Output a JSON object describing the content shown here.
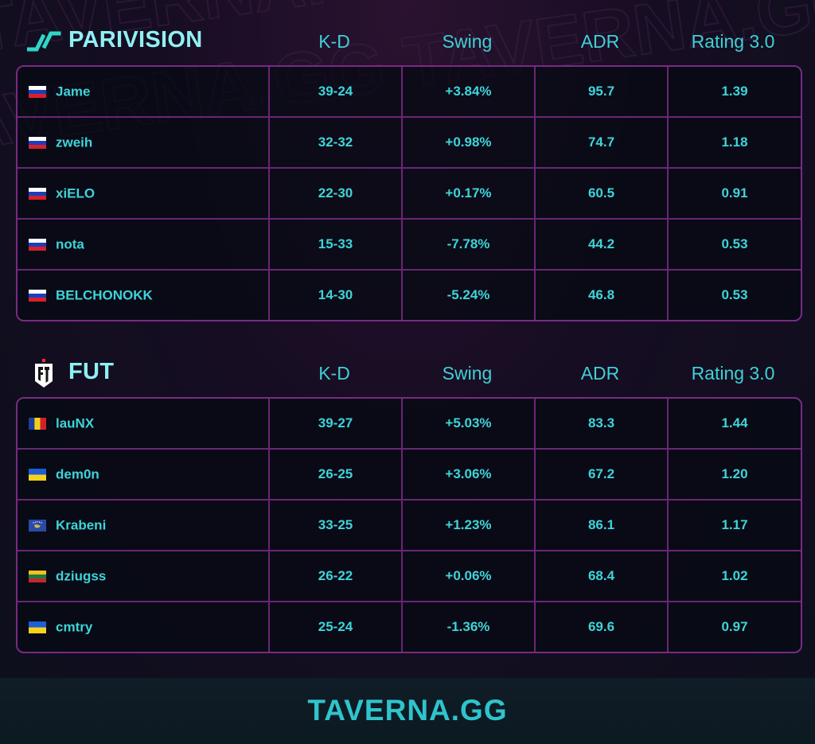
{
  "columns": {
    "kd": "K-D",
    "swing": "Swing",
    "adr": "ADR",
    "rating": "Rating 3.0"
  },
  "teams": [
    {
      "name": "PARIVISION",
      "logo_icon": "parivision-logo-icon",
      "players": [
        {
          "name": "Jame",
          "flag": "russia-flag-icon",
          "kd": "39-24",
          "swing": "+3.84%",
          "adr": "95.7",
          "rating": "1.39"
        },
        {
          "name": "zweih",
          "flag": "russia-flag-icon",
          "kd": "32-32",
          "swing": "+0.98%",
          "adr": "74.7",
          "rating": "1.18"
        },
        {
          "name": "xiELO",
          "flag": "russia-flag-icon",
          "kd": "22-30",
          "swing": "+0.17%",
          "adr": "60.5",
          "rating": "0.91"
        },
        {
          "name": "nota",
          "flag": "russia-flag-icon",
          "kd": "15-33",
          "swing": "-7.78%",
          "adr": "44.2",
          "rating": "0.53"
        },
        {
          "name": "BELCHONOKK",
          "flag": "russia-flag-icon",
          "kd": "14-30",
          "swing": "-5.24%",
          "adr": "46.8",
          "rating": "0.53"
        }
      ]
    },
    {
      "name": "FUT",
      "logo_icon": "fut-logo-icon",
      "players": [
        {
          "name": "lauNX",
          "flag": "romania-flag-icon",
          "kd": "39-27",
          "swing": "+5.03%",
          "adr": "83.3",
          "rating": "1.44"
        },
        {
          "name": "dem0n",
          "flag": "ukraine-flag-icon",
          "kd": "26-25",
          "swing": "+3.06%",
          "adr": "67.2",
          "rating": "1.20"
        },
        {
          "name": "Krabeni",
          "flag": "kosovo-flag-icon",
          "kd": "33-25",
          "swing": "+1.23%",
          "adr": "86.1",
          "rating": "1.17"
        },
        {
          "name": "dziugss",
          "flag": "lithuania-flag-icon",
          "kd": "26-22",
          "swing": "+0.06%",
          "adr": "68.4",
          "rating": "1.02"
        },
        {
          "name": "cmtry",
          "flag": "ukraine-flag-icon",
          "kd": "25-24",
          "swing": "-1.36%",
          "adr": "69.6",
          "rating": "0.97"
        }
      ]
    }
  ],
  "footer": {
    "brand": "TAVERNA.GG"
  },
  "colors": {
    "accent": "#3ed4d9",
    "border": "#7a2a84",
    "background": "#160d22"
  }
}
